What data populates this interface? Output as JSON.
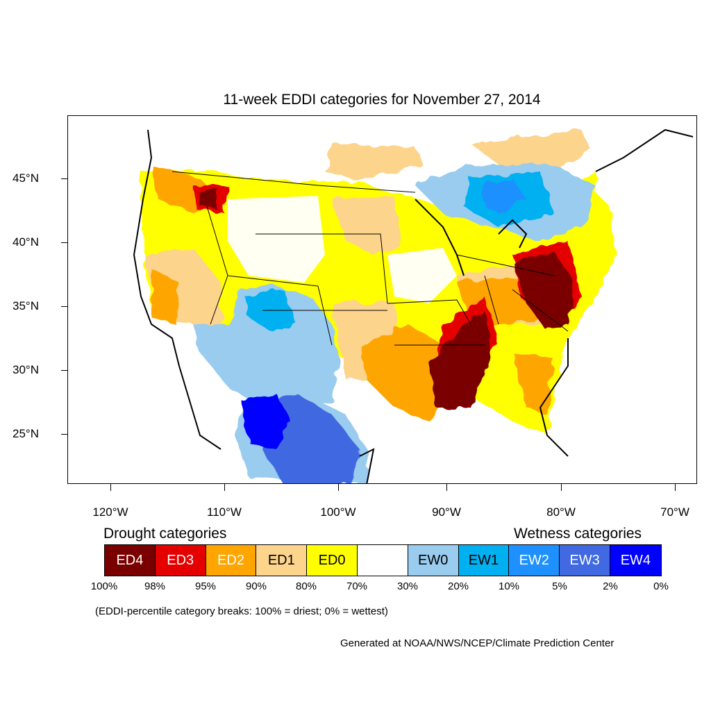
{
  "title": "11-week EDDI categories for November 27, 2014",
  "axes": {
    "y_labels": [
      "45°N",
      "40°N",
      "35°N",
      "30°N",
      "25°N"
    ],
    "x_labels": [
      "120°W",
      "110°W",
      "100°W",
      "90°W",
      "80°W",
      "70°W"
    ]
  },
  "legend": {
    "drought_heading": "Drought categories",
    "wetness_heading": "Wetness categories",
    "categories": [
      {
        "label": "ED4",
        "color": "#7a0000",
        "text_color": "#ffffff"
      },
      {
        "label": "ED3",
        "color": "#e50000",
        "text_color": "#ffffff"
      },
      {
        "label": "ED2",
        "color": "#ffa500",
        "text_color": "#ffffff"
      },
      {
        "label": "ED1",
        "color": "#fcd48c",
        "text_color": "#000000"
      },
      {
        "label": "ED0",
        "color": "#ffff00",
        "text_color": "#000000"
      },
      {
        "label": "",
        "color": "#ffffff",
        "text_color": "#000000"
      },
      {
        "label": "EW0",
        "color": "#99ccee",
        "text_color": "#000000"
      },
      {
        "label": "EW1",
        "color": "#00b0f0",
        "text_color": "#000000"
      },
      {
        "label": "EW2",
        "color": "#1e90ff",
        "text_color": "#ffffff"
      },
      {
        "label": "EW3",
        "color": "#4169e1",
        "text_color": "#ffffff"
      },
      {
        "label": "EW4",
        "color": "#0000ff",
        "text_color": "#ffffff"
      }
    ],
    "percent_breaks": [
      "100%",
      "98%",
      "95%",
      "90%",
      "80%",
      "70%",
      "30%",
      "20%",
      "10%",
      "5%",
      "2%",
      "0%"
    ]
  },
  "note": "(EDDI-percentile category breaks: 100% = driest; 0% = wettest)",
  "credit": "Generated at NOAA/NWS/NCEP/Climate Prediction Center"
}
